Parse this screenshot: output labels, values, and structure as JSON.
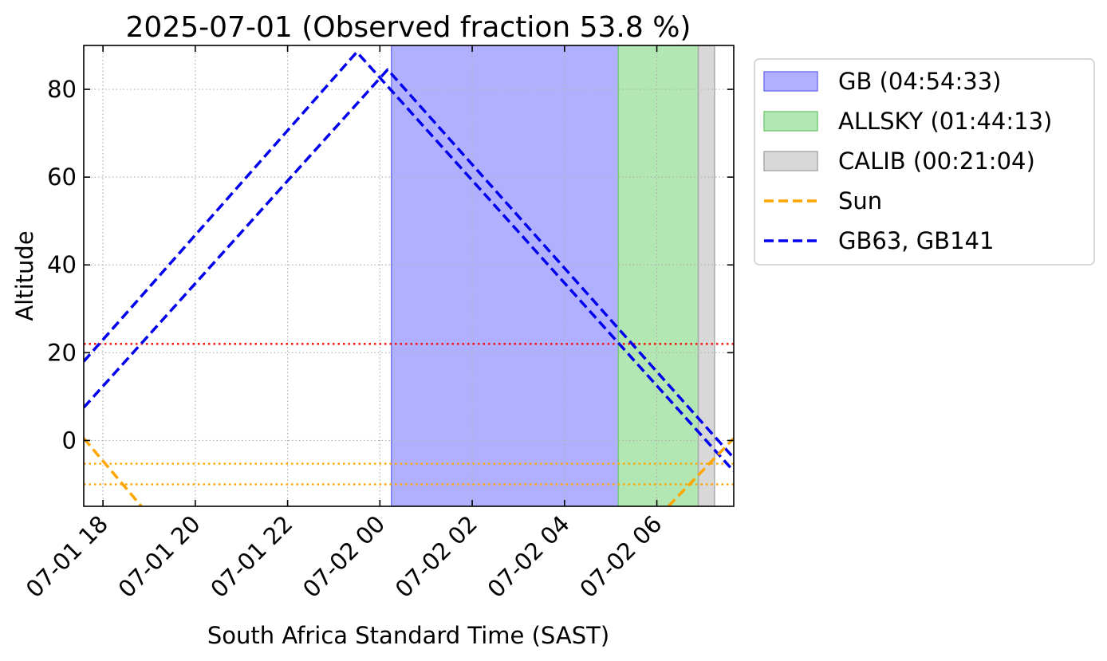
{
  "chart_data": {
    "type": "line",
    "title": "2025-07-01 (Observed fraction 53.8 %)",
    "xlabel": "South Africa Standard Time (SAST)",
    "ylabel": "Altitude",
    "x_unit": "SAST datetime",
    "xlim": [
      "2025-07-01 17:35",
      "2025-07-02 07:40"
    ],
    "ylim": [
      -15,
      90
    ],
    "x_ticks": [
      {
        "t": "2025-07-01 18:00",
        "label": "07-01 18"
      },
      {
        "t": "2025-07-01 20:00",
        "label": "07-01 20"
      },
      {
        "t": "2025-07-01 22:00",
        "label": "07-01 22"
      },
      {
        "t": "2025-07-02 00:00",
        "label": "07-02 00"
      },
      {
        "t": "2025-07-02 02:00",
        "label": "07-02 02"
      },
      {
        "t": "2025-07-02 04:00",
        "label": "07-02 04"
      },
      {
        "t": "2025-07-02 06:00",
        "label": "07-02 06"
      }
    ],
    "y_ticks": [
      {
        "v": 0,
        "label": "0"
      },
      {
        "v": 20,
        "label": "20"
      },
      {
        "v": 40,
        "label": "40"
      },
      {
        "v": 60,
        "label": "60"
      },
      {
        "v": 80,
        "label": "80"
      }
    ],
    "grid": true,
    "legend_position": "outside-right-top",
    "bands": [
      {
        "name": "GB (04:54:33)",
        "start": "2025-07-02 00:15",
        "end": "2025-07-02 05:10",
        "color": "#b0b0ff",
        "edge": "#7777ee"
      },
      {
        "name": "ALLSKY (01:44:13)",
        "start": "2025-07-02 05:10",
        "end": "2025-07-02 06:54",
        "color": "#b2e6b2",
        "edge": "#77cc77"
      },
      {
        "name": "CALIB (00:21:04)",
        "start": "2025-07-02 06:54",
        "end": "2025-07-02 07:15",
        "color": "#d8d8d8",
        "edge": "#aaaaaa"
      }
    ],
    "hlines": [
      {
        "y": 22,
        "color": "#ff0000"
      },
      {
        "y": -5.3,
        "color": "#ffa500"
      },
      {
        "y": -10,
        "color": "#ffa500"
      }
    ],
    "legend_lines": [
      {
        "name": "Sun",
        "color": "#ffa500"
      },
      {
        "name": "GB63, GB141",
        "color": "#0000ee"
      }
    ],
    "series": [
      {
        "group": "GB63, GB141",
        "color": "#0000ee",
        "points": [
          {
            "t": "2025-07-01 17:35",
            "y": 18
          },
          {
            "t": "2025-07-01 23:30",
            "y": 88.5
          },
          {
            "t": "2025-07-02 07:40",
            "y": -7
          }
        ]
      },
      {
        "group": "GB63, GB141",
        "color": "#0000ee",
        "points": [
          {
            "t": "2025-07-01 17:35",
            "y": 7.5
          },
          {
            "t": "2025-07-02 00:10",
            "y": 84.5
          },
          {
            "t": "2025-07-02 07:40",
            "y": -4
          }
        ]
      },
      {
        "group": "Sun",
        "color": "#ffa500",
        "points": [
          {
            "t": "2025-07-01 17:35",
            "y": 0.5
          },
          {
            "t": "2025-07-01 18:50",
            "y": -15
          }
        ]
      },
      {
        "group": "Sun",
        "color": "#ffa500",
        "points": [
          {
            "t": "2025-07-02 06:15",
            "y": -15
          },
          {
            "t": "2025-07-02 07:40",
            "y": 0.5
          }
        ]
      }
    ]
  }
}
